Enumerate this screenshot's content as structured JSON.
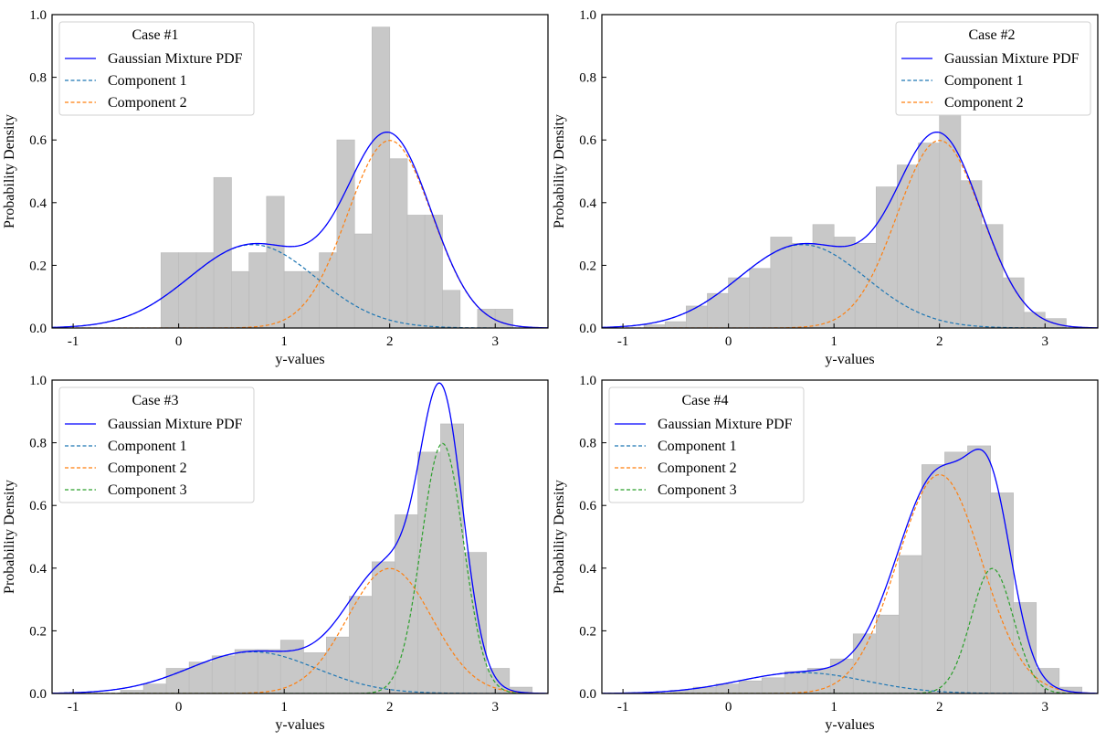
{
  "chart_data": [
    {
      "type": "histogram-with-density-curves",
      "xlabel": "y-values",
      "ylabel": "Probability Density",
      "xlim": [
        -1.2,
        3.5
      ],
      "ylim": [
        0,
        1.0
      ],
      "xticks": [
        "-1",
        "0",
        "1",
        "2",
        "3"
      ],
      "yticks": [
        "0.0",
        "0.2",
        "0.4",
        "0.6",
        "0.8",
        "1.0"
      ],
      "legend": {
        "title": "Case #1",
        "position": "upper-left",
        "entries": [
          {
            "label": "Gaussian Mixture PDF",
            "color": "#0000ff",
            "dashed": false
          },
          {
            "label": "Component 1",
            "color": "#1f77b4",
            "dashed": true
          },
          {
            "label": "Component 2",
            "color": "#ff7f0e",
            "dashed": true
          }
        ]
      },
      "histogram": {
        "bin_width": 0.1667,
        "bin_starts": [
          -0.167,
          0.0,
          0.167,
          0.333,
          0.5,
          0.667,
          0.833,
          1.0,
          1.167,
          1.333,
          1.5,
          1.667,
          1.833,
          2.0,
          2.167,
          2.333,
          2.5,
          2.667,
          2.833,
          3.0
        ],
        "values": [
          0.24,
          0.24,
          0.24,
          0.48,
          0.18,
          0.24,
          0.42,
          0.18,
          0.18,
          0.24,
          0.6,
          0.3,
          0.96,
          0.54,
          0.36,
          0.36,
          0.12,
          0.0,
          0.06,
          0.06
        ]
      },
      "components": [
        {
          "name": "Component 1",
          "weight": 0.4,
          "mean": 0.7,
          "std": 0.6,
          "color": "#1f77b4"
        },
        {
          "name": "Component 2",
          "weight": 0.6,
          "mean": 2.0,
          "std": 0.4,
          "color": "#ff7f0e"
        }
      ]
    },
    {
      "type": "histogram-with-density-curves",
      "xlabel": "y-values",
      "ylabel": "Probability Density",
      "xlim": [
        -1.2,
        3.5
      ],
      "ylim": [
        0,
        1.0
      ],
      "xticks": [
        "-1",
        "0",
        "1",
        "2",
        "3"
      ],
      "yticks": [
        "0.0",
        "0.2",
        "0.4",
        "0.6",
        "0.8",
        "1.0"
      ],
      "legend": {
        "title": "Case #2",
        "position": "upper-right",
        "entries": [
          {
            "label": "Gaussian Mixture PDF",
            "color": "#0000ff",
            "dashed": false
          },
          {
            "label": "Component 1",
            "color": "#1f77b4",
            "dashed": true
          },
          {
            "label": "Component 2",
            "color": "#ff7f0e",
            "dashed": true
          }
        ]
      },
      "histogram": {
        "bin_width": 0.2,
        "bin_starts": [
          -0.8,
          -0.6,
          -0.4,
          -0.2,
          0.0,
          0.2,
          0.4,
          0.6,
          0.8,
          1.0,
          1.2,
          1.4,
          1.6,
          1.8,
          2.0,
          2.2,
          2.4,
          2.6,
          2.8,
          3.0,
          3.2
        ],
        "values": [
          0.01,
          0.02,
          0.07,
          0.11,
          0.16,
          0.19,
          0.29,
          0.27,
          0.33,
          0.29,
          0.27,
          0.45,
          0.52,
          0.59,
          0.68,
          0.47,
          0.33,
          0.16,
          0.05,
          0.03,
          0.0
        ]
      },
      "components": [
        {
          "name": "Component 1",
          "weight": 0.4,
          "mean": 0.7,
          "std": 0.6,
          "color": "#1f77b4"
        },
        {
          "name": "Component 2",
          "weight": 0.6,
          "mean": 2.0,
          "std": 0.4,
          "color": "#ff7f0e"
        }
      ]
    },
    {
      "type": "histogram-with-density-curves",
      "xlabel": "y-values",
      "ylabel": "Probability Density",
      "xlim": [
        -1.2,
        3.5
      ],
      "ylim": [
        0,
        1.0
      ],
      "xticks": [
        "-1",
        "0",
        "1",
        "2",
        "3"
      ],
      "yticks": [
        "0.0",
        "0.2",
        "0.4",
        "0.6",
        "0.8",
        "1.0"
      ],
      "legend": {
        "title": "Case #3",
        "position": "upper-left",
        "entries": [
          {
            "label": "Gaussian Mixture PDF",
            "color": "#0000ff",
            "dashed": false
          },
          {
            "label": "Component 1",
            "color": "#1f77b4",
            "dashed": true
          },
          {
            "label": "Component 2",
            "color": "#ff7f0e",
            "dashed": true
          },
          {
            "label": "Component 3",
            "color": "#2ca02c",
            "dashed": true
          }
        ]
      },
      "histogram": {
        "bin_width": 0.2167,
        "bin_starts": [
          -0.55,
          -0.333,
          -0.117,
          0.1,
          0.317,
          0.533,
          0.75,
          0.967,
          1.183,
          1.4,
          1.617,
          1.833,
          2.05,
          2.267,
          2.483,
          2.7,
          2.917,
          3.133
        ],
        "values": [
          0.01,
          0.03,
          0.08,
          0.1,
          0.12,
          0.14,
          0.14,
          0.17,
          0.13,
          0.18,
          0.31,
          0.42,
          0.57,
          0.77,
          0.86,
          0.45,
          0.08,
          0.02
        ]
      },
      "components": [
        {
          "name": "Component 1",
          "weight": 0.2,
          "mean": 0.7,
          "std": 0.6,
          "color": "#1f77b4"
        },
        {
          "name": "Component 2",
          "weight": 0.4,
          "mean": 2.0,
          "std": 0.4,
          "color": "#ff7f0e"
        },
        {
          "name": "Component 3",
          "weight": 0.4,
          "mean": 2.5,
          "std": 0.2,
          "color": "#2ca02c"
        }
      ]
    },
    {
      "type": "histogram-with-density-curves",
      "xlabel": "y-values",
      "ylabel": "Probability Density",
      "xlim": [
        -1.2,
        3.5
      ],
      "ylim": [
        0,
        1.0
      ],
      "xticks": [
        "-1",
        "0",
        "1",
        "2",
        "3"
      ],
      "yticks": [
        "0.0",
        "0.2",
        "0.4",
        "0.6",
        "0.8",
        "1.0"
      ],
      "legend": {
        "title": "Case #4",
        "position": "upper-left",
        "entries": [
          {
            "label": "Gaussian Mixture PDF",
            "color": "#0000ff",
            "dashed": false
          },
          {
            "label": "Component 1",
            "color": "#1f77b4",
            "dashed": true
          },
          {
            "label": "Component 2",
            "color": "#ff7f0e",
            "dashed": true
          },
          {
            "label": "Component 3",
            "color": "#2ca02c",
            "dashed": true
          }
        ]
      },
      "histogram": {
        "bin_width": 0.2167,
        "bin_starts": [
          -0.55,
          -0.333,
          -0.117,
          0.1,
          0.317,
          0.533,
          0.75,
          0.967,
          1.183,
          1.4,
          1.617,
          1.833,
          2.05,
          2.267,
          2.483,
          2.7,
          2.917,
          3.133
        ],
        "values": [
          0.01,
          0.02,
          0.03,
          0.04,
          0.05,
          0.07,
          0.08,
          0.11,
          0.19,
          0.25,
          0.44,
          0.73,
          0.77,
          0.79,
          0.64,
          0.29,
          0.08,
          0.02
        ]
      },
      "components": [
        {
          "name": "Component 1",
          "weight": 0.1,
          "mean": 0.7,
          "std": 0.6,
          "color": "#1f77b4"
        },
        {
          "name": "Component 2",
          "weight": 0.7,
          "mean": 2.0,
          "std": 0.4,
          "color": "#ff7f0e"
        },
        {
          "name": "Component 3",
          "weight": 0.2,
          "mean": 2.5,
          "std": 0.2,
          "color": "#2ca02c"
        }
      ]
    }
  ]
}
